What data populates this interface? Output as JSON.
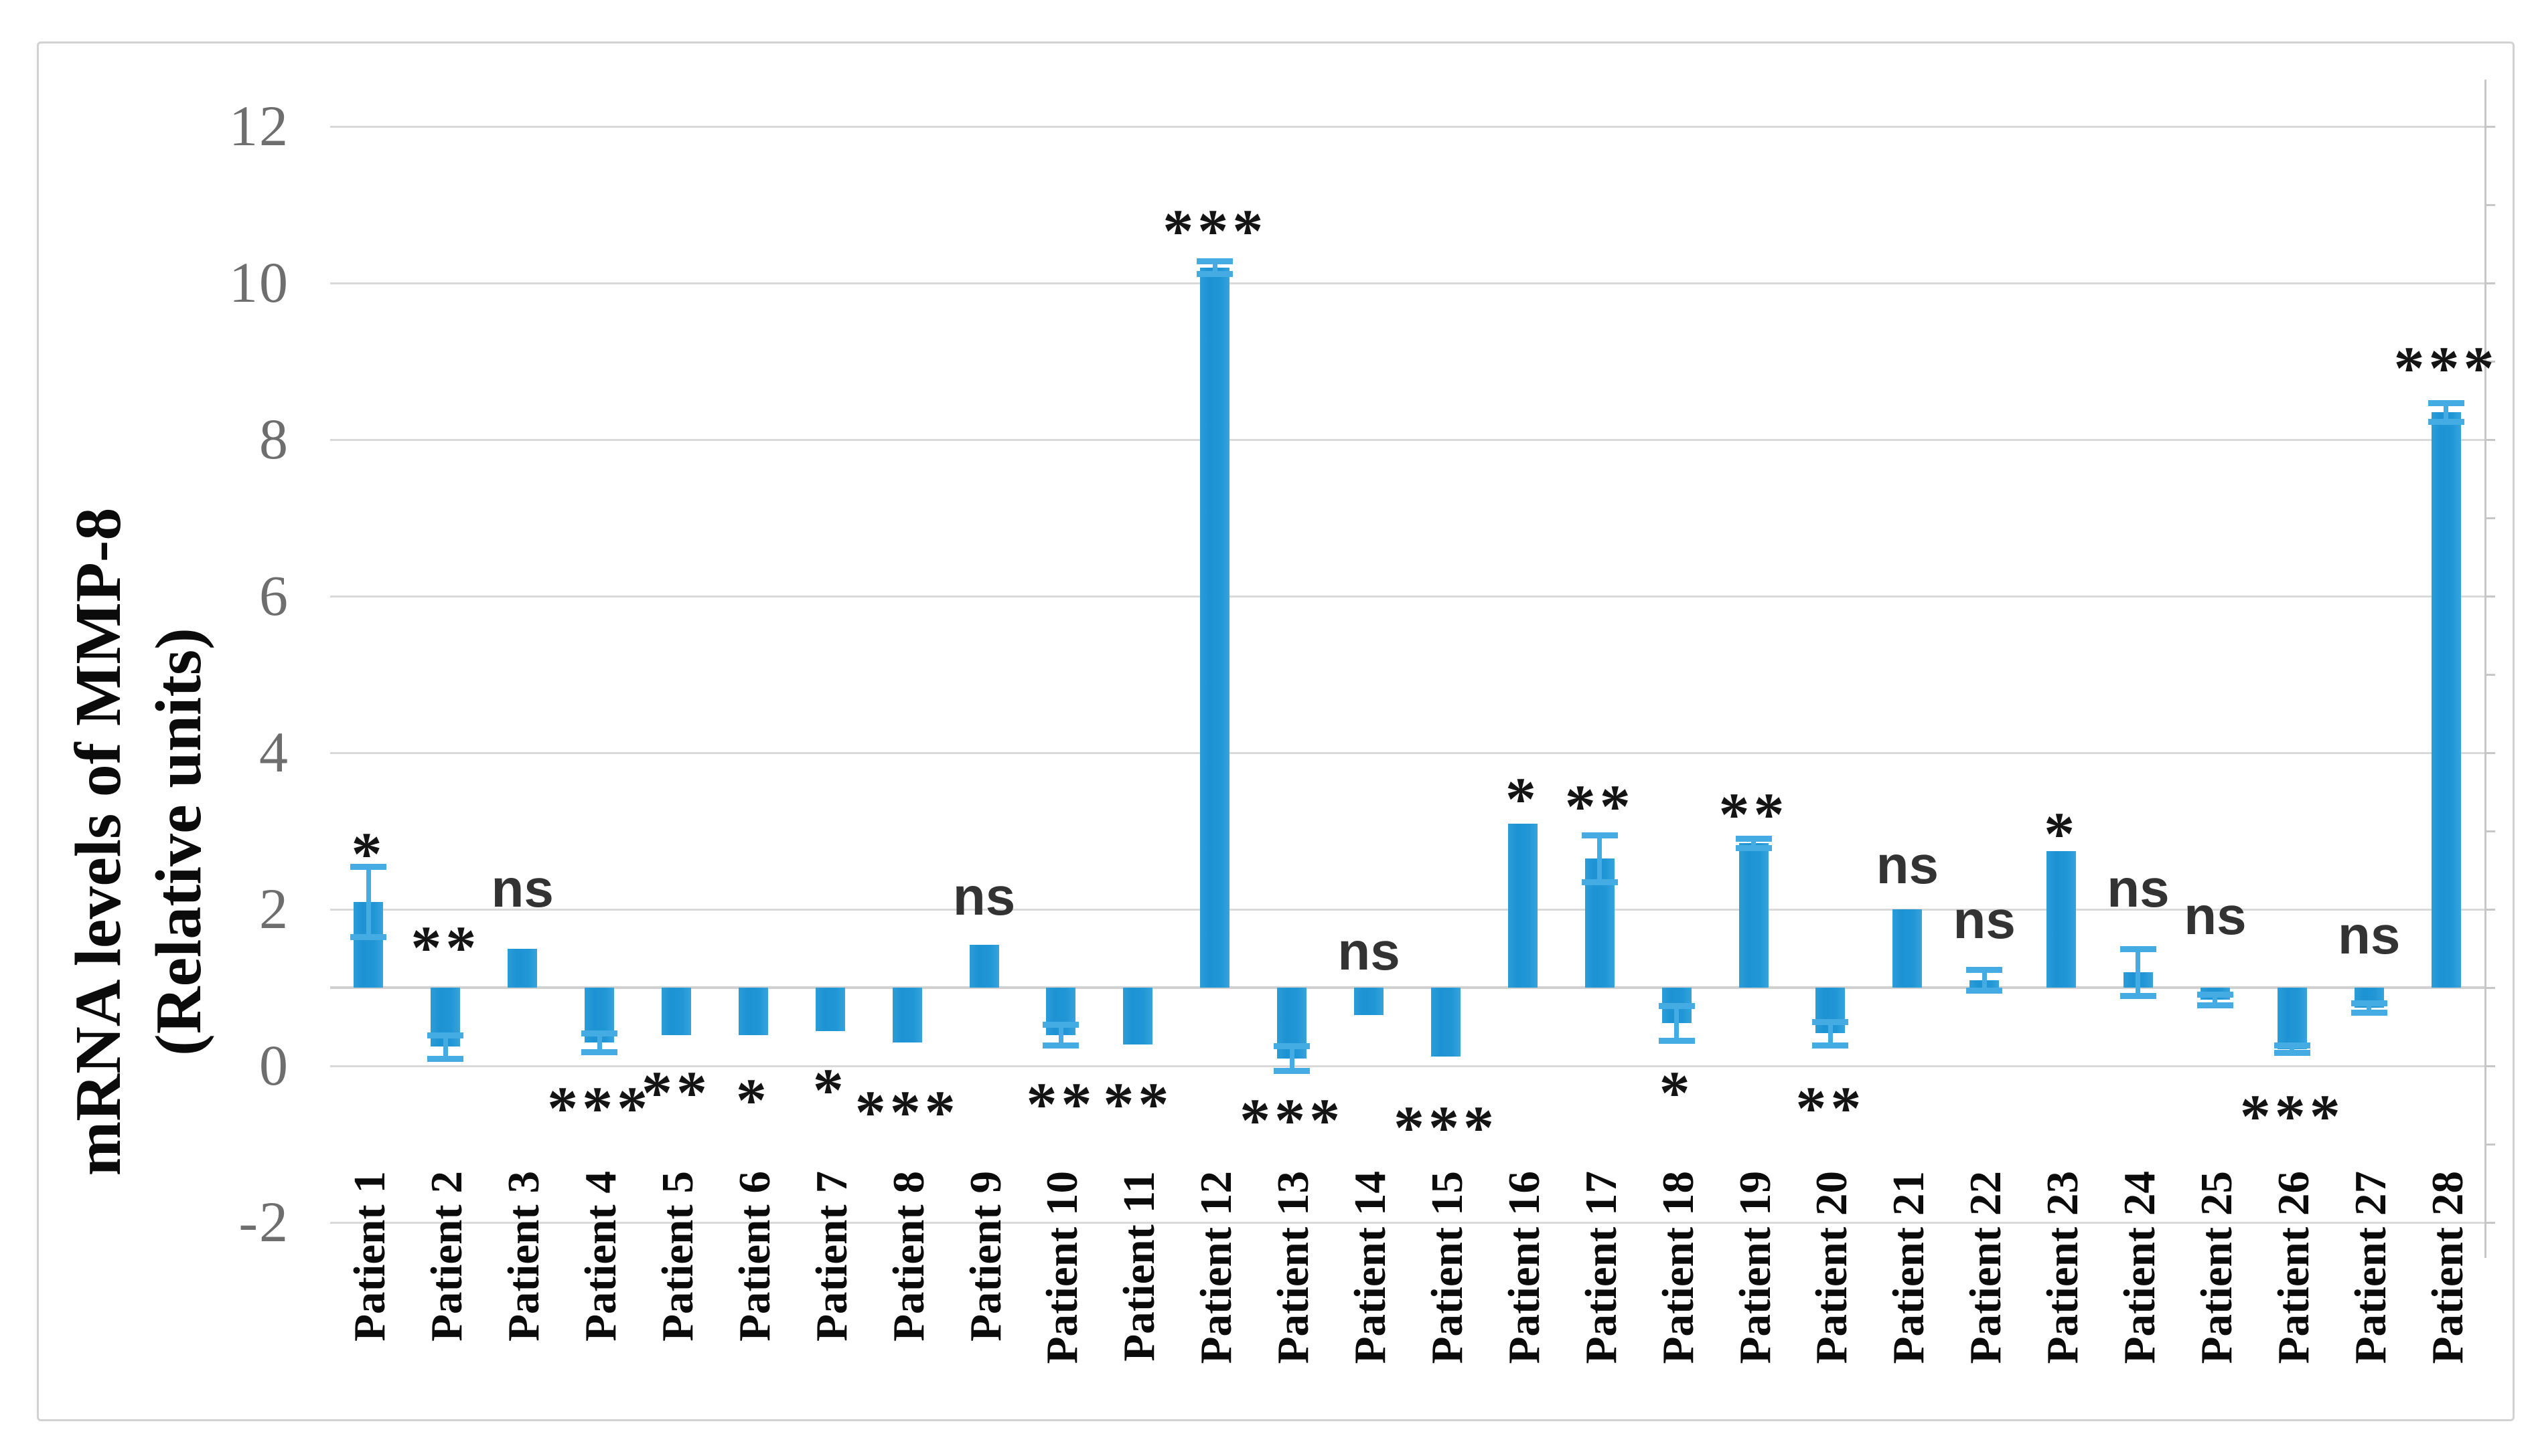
{
  "figure": {
    "background": "#ffffff",
    "border_color": "#d2d2d2"
  },
  "chart_data": {
    "type": "bar",
    "title": "",
    "xlabel": "",
    "ylabel_lines": [
      "mRNA levels of MMP-8",
      "(Relative units)"
    ],
    "yticks": [
      12,
      10,
      8,
      6,
      4,
      2,
      0,
      -2
    ],
    "ylim": [
      -2.45,
      12.6
    ],
    "baseline": 1,
    "grid": true,
    "legend": "none",
    "colors": {
      "bar": "#2196D6",
      "error_bar": "#44ACE3",
      "gridline": "#D9D9D9",
      "baseline_axis": "#D0D0D0",
      "tick_text": "#6E6E6E",
      "annotation_star": "#141414",
      "annotation_ns": "#333333",
      "category_text": "#0B0B0B"
    },
    "categories": [
      "Patient 1",
      "Patient 2",
      "Patient 3",
      "Patient 4",
      "Patient 5",
      "Patient 6",
      "Patient 7",
      "Patient 8",
      "Patient 9",
      "Patient 10",
      "Patient 11",
      "Patient 12",
      "Patient 13",
      "Patient 14",
      "Patient 15",
      "Patient 16",
      "Patient 17",
      "Patient 18",
      "Patient 19",
      "Patient 20",
      "Patient 21",
      "Patient 22",
      "Patient 23",
      "Patient 24",
      "Patient 25",
      "Patient 26",
      "Patient 27",
      "Patient 28"
    ],
    "values": [
      2.1,
      0.25,
      1.5,
      0.3,
      0.4,
      0.4,
      0.45,
      0.3,
      1.55,
      0.4,
      0.28,
      10.2,
      0.1,
      0.65,
      0.12,
      3.1,
      2.65,
      0.55,
      2.85,
      0.42,
      2.0,
      1.1,
      2.75,
      1.2,
      0.85,
      0.22,
      0.75,
      8.35
    ],
    "errors": [
      0.45,
      0.15,
      0,
      0.12,
      0,
      0,
      0,
      0,
      0,
      0.13,
      0,
      0.08,
      0.16,
      0,
      0,
      0,
      0.3,
      0.22,
      0.06,
      0.15,
      0,
      0.13,
      0,
      0.3,
      0.07,
      0.05,
      0.06,
      0.12
    ],
    "significance": [
      {
        "text": "*",
        "y": 2.8
      },
      {
        "text": "**",
        "y": 1.6
      },
      {
        "text": "ns",
        "y": 2.2
      },
      {
        "text": "***",
        "y": -0.45
      },
      {
        "text": "**",
        "y": -0.25
      },
      {
        "text": "*",
        "y": -0.35
      },
      {
        "text": "*",
        "y": -0.22
      },
      {
        "text": "***",
        "y": -0.5
      },
      {
        "text": "ns",
        "y": 2.1
      },
      {
        "text": "**",
        "y": -0.4
      },
      {
        "text": "**",
        "y": -0.4
      },
      {
        "text": "***",
        "y": 10.75
      },
      {
        "text": "***",
        "y": -0.6
      },
      {
        "text": "ns",
        "y": 1.4
      },
      {
        "text": "***",
        "y": -0.7
      },
      {
        "text": "*",
        "y": 3.5
      },
      {
        "text": "**",
        "y": 3.4
      },
      {
        "text": "*",
        "y": -0.25
      },
      {
        "text": "**",
        "y": 3.3
      },
      {
        "text": "**",
        "y": -0.45
      },
      {
        "text": "ns",
        "y": 2.5
      },
      {
        "text": "ns",
        "y": 1.8
      },
      {
        "text": "*",
        "y": 3.05
      },
      {
        "text": "ns",
        "y": 2.2
      },
      {
        "text": "ns",
        "y": 1.85
      },
      {
        "text": "***",
        "y": -0.55
      },
      {
        "text": "ns",
        "y": 1.6
      },
      {
        "text": "***",
        "y": 9.0
      }
    ]
  }
}
